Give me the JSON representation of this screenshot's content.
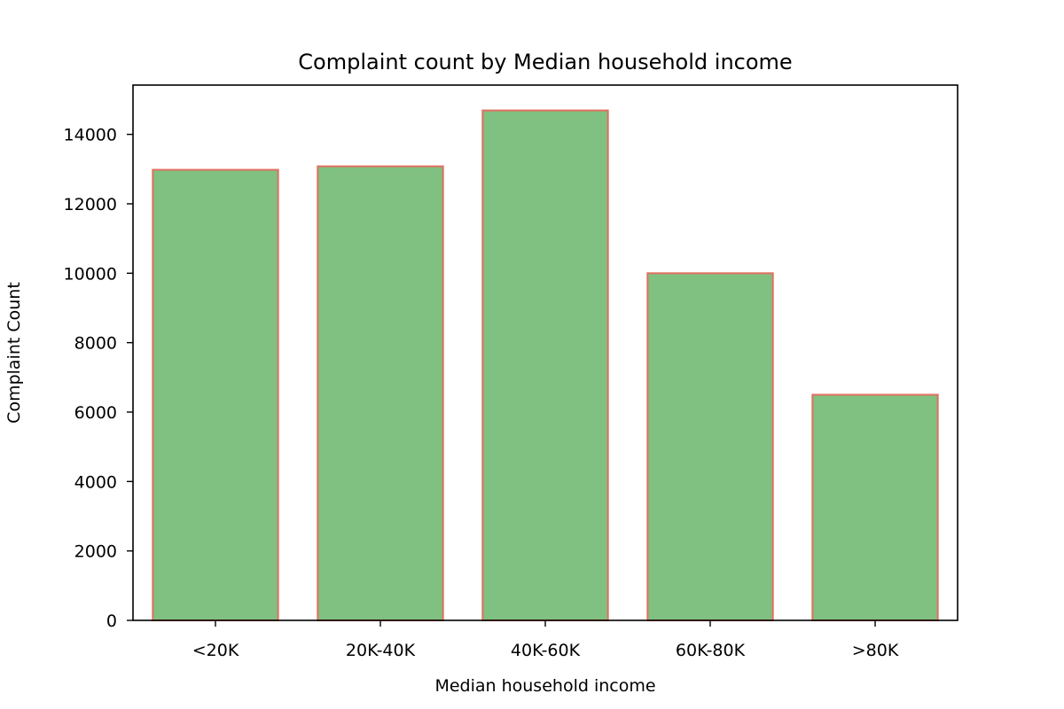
{
  "chart_data": {
    "type": "bar",
    "title": "Complaint count by Median household income",
    "xlabel": "Median household income",
    "ylabel": "Complaint Count",
    "categories": [
      "<20K",
      "20K-40K",
      "40K-60K",
      "60K-80K",
      ">80K"
    ],
    "values": [
      12980,
      13080,
      14690,
      10000,
      6500
    ],
    "ylim": [
      0,
      15420
    ],
    "yticks": [
      "0",
      "2000",
      "4000",
      "6000",
      "8000",
      "10000",
      "12000",
      "14000"
    ],
    "grid": false,
    "legend": "none",
    "colors": {
      "bar_fill": "#80c080",
      "bar_edge": "#e07060"
    }
  }
}
